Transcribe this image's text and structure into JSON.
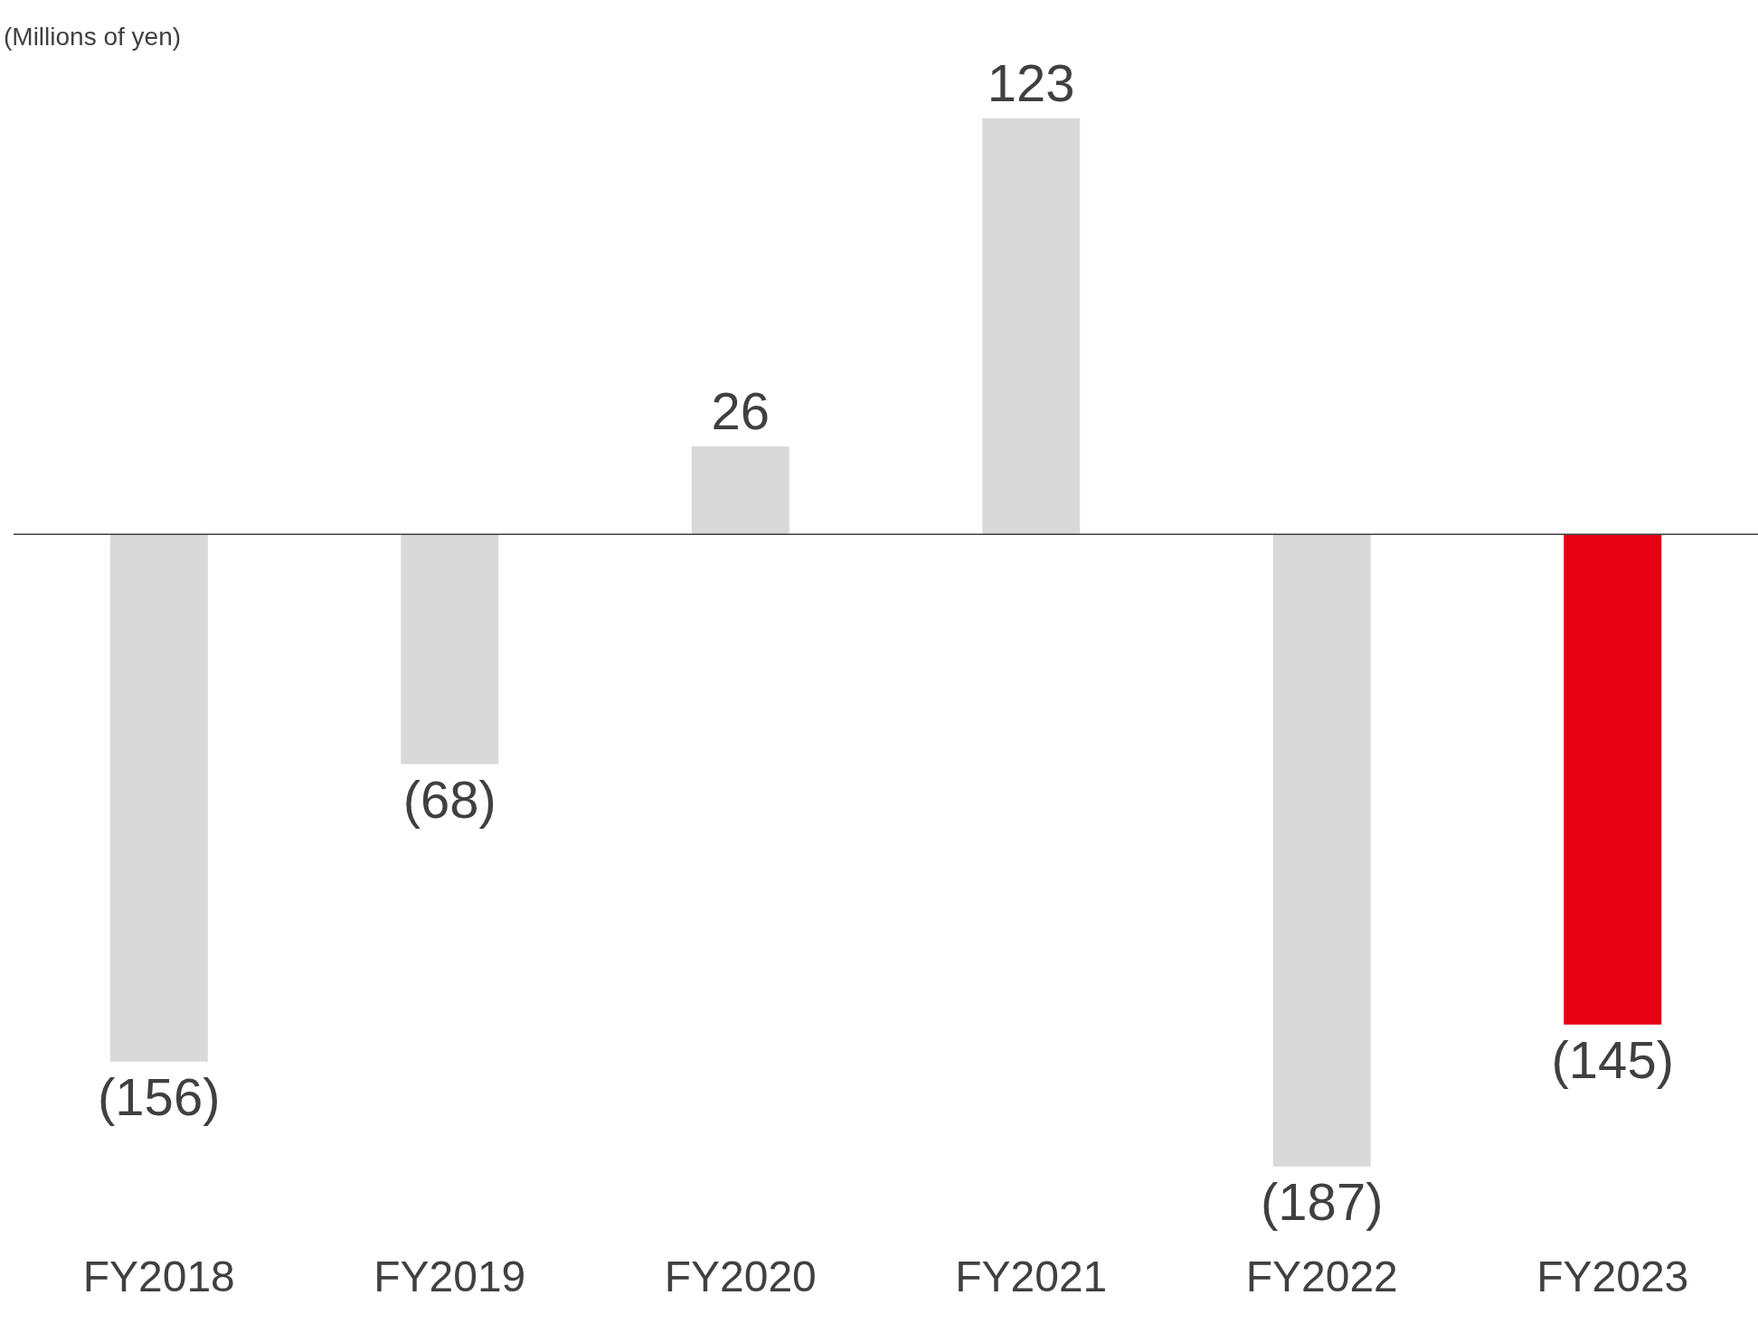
{
  "chart_data": {
    "type": "bar",
    "ylabel": "(Millions of yen)",
    "categories": [
      "FY2018",
      "FY2019",
      "FY2020",
      "FY2021",
      "FY2022",
      "FY2023"
    ],
    "values": [
      -156,
      -68,
      26,
      123,
      -187,
      -145
    ],
    "colors": [
      "#d9d9d9",
      "#d9d9d9",
      "#d9d9d9",
      "#d9d9d9",
      "#d9d9d9",
      "#e60012"
    ],
    "value_labels": [
      "(156)",
      "(68)",
      "26",
      "123",
      "(187)",
      "(145)"
    ],
    "ref_lines": [
      {
        "axis": "y",
        "value": 0,
        "color": "#404040"
      }
    ],
    "tick_labels": "x"
  }
}
